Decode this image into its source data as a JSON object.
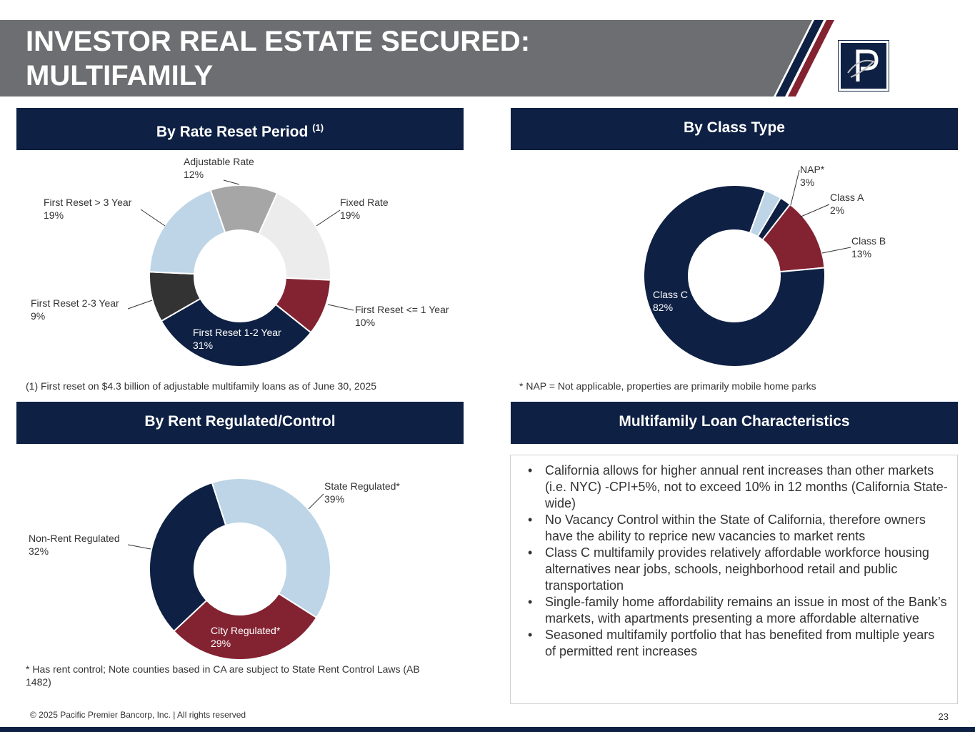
{
  "title": {
    "line1": "INVESTOR REAL ESTATE SECURED:",
    "line2": "MULTIFAMILY"
  },
  "colors": {
    "title_band": "#6d6e71",
    "navy": "#0e2043",
    "maroon": "#832332",
    "light_blue": "#bdd5e6",
    "dark_gray": "#333333",
    "mid_gray": "#a6a6a6",
    "light_gray": "#ececec"
  },
  "panels": {
    "rate_reset": {
      "title": "By Rate Reset Period",
      "superscript": "(1)",
      "note": "(1) First reset on $4.3 billion of adjustable multifamily loans as of June 30, 2025"
    },
    "class_type": {
      "title": "By Class Type",
      "note": "* NAP = Not applicable, properties are primarily mobile home parks"
    },
    "rent_regulated": {
      "title": "By Rent Regulated/Control",
      "note": "* Has rent control; Note counties based in CA are subject to State Rent Control Laws (AB 1482)"
    },
    "characteristics": {
      "title": "Multifamily Loan Characteristics",
      "bullets": [
        "California allows for higher annual rent increases than other markets (i.e. NYC) -CPI+5%, not to exceed 10% in 12 months (California State-wide)",
        "No Vacancy Control within the State of California, therefore owners have the ability to reprice new vacancies to market rents",
        "Class C multifamily provides relatively affordable workforce housing alternatives near jobs, schools, neighborhood retail and public transportation",
        "Single-family home affordability remains an issue in most of the Bank’s markets, with apartments presenting a more affordable alternative",
        "Seasoned multifamily portfolio that has benefited from multiple years of permitted rent increases"
      ]
    }
  },
  "chart_data": [
    {
      "type": "pie",
      "title": "By Rate Reset Period",
      "slices": [
        {
          "label": "Adjustable Rate",
          "value": 12,
          "display": "12%",
          "color": "#a6a6a6"
        },
        {
          "label": "Fixed Rate",
          "value": 19,
          "display": "19%",
          "color": "#ececec"
        },
        {
          "label": "First Reset <= 1 Year",
          "value": 10,
          "display": "10%",
          "color": "#832332"
        },
        {
          "label": "First Reset 1-2 Year",
          "value": 31,
          "display": "31%",
          "color": "#0e2043"
        },
        {
          "label": "First Reset 2-3 Year",
          "value": 9,
          "display": "9%",
          "color": "#333333"
        },
        {
          "label": "First Reset > 3 Year",
          "value": 19,
          "display": "19%",
          "color": "#bdd5e6"
        }
      ]
    },
    {
      "type": "pie",
      "title": "By Class Type",
      "slices": [
        {
          "label": "NAP*",
          "value": 3,
          "display": "3%",
          "color": "#bdd5e6"
        },
        {
          "label": "Class A",
          "value": 2,
          "display": "2%",
          "color": "#0e2043"
        },
        {
          "label": "Class B",
          "value": 13,
          "display": "13%",
          "color": "#832332"
        },
        {
          "label": "Class C",
          "value": 82,
          "display": "82%",
          "color": "#0e2043"
        }
      ]
    },
    {
      "type": "pie",
      "title": "By Rent Regulated/Control",
      "slices": [
        {
          "label": "State Regulated*",
          "value": 39,
          "display": "39%",
          "color": "#bdd5e6"
        },
        {
          "label": "City Regulated*",
          "value": 29,
          "display": "29%",
          "color": "#832332"
        },
        {
          "label": "Non-Rent Regulated",
          "value": 32,
          "display": "32%",
          "color": "#0e2043"
        }
      ]
    }
  ],
  "footer": {
    "copyright": "© 2025 Pacific Premier Bancorp, Inc. | All rights reserved",
    "page_number": "23"
  }
}
